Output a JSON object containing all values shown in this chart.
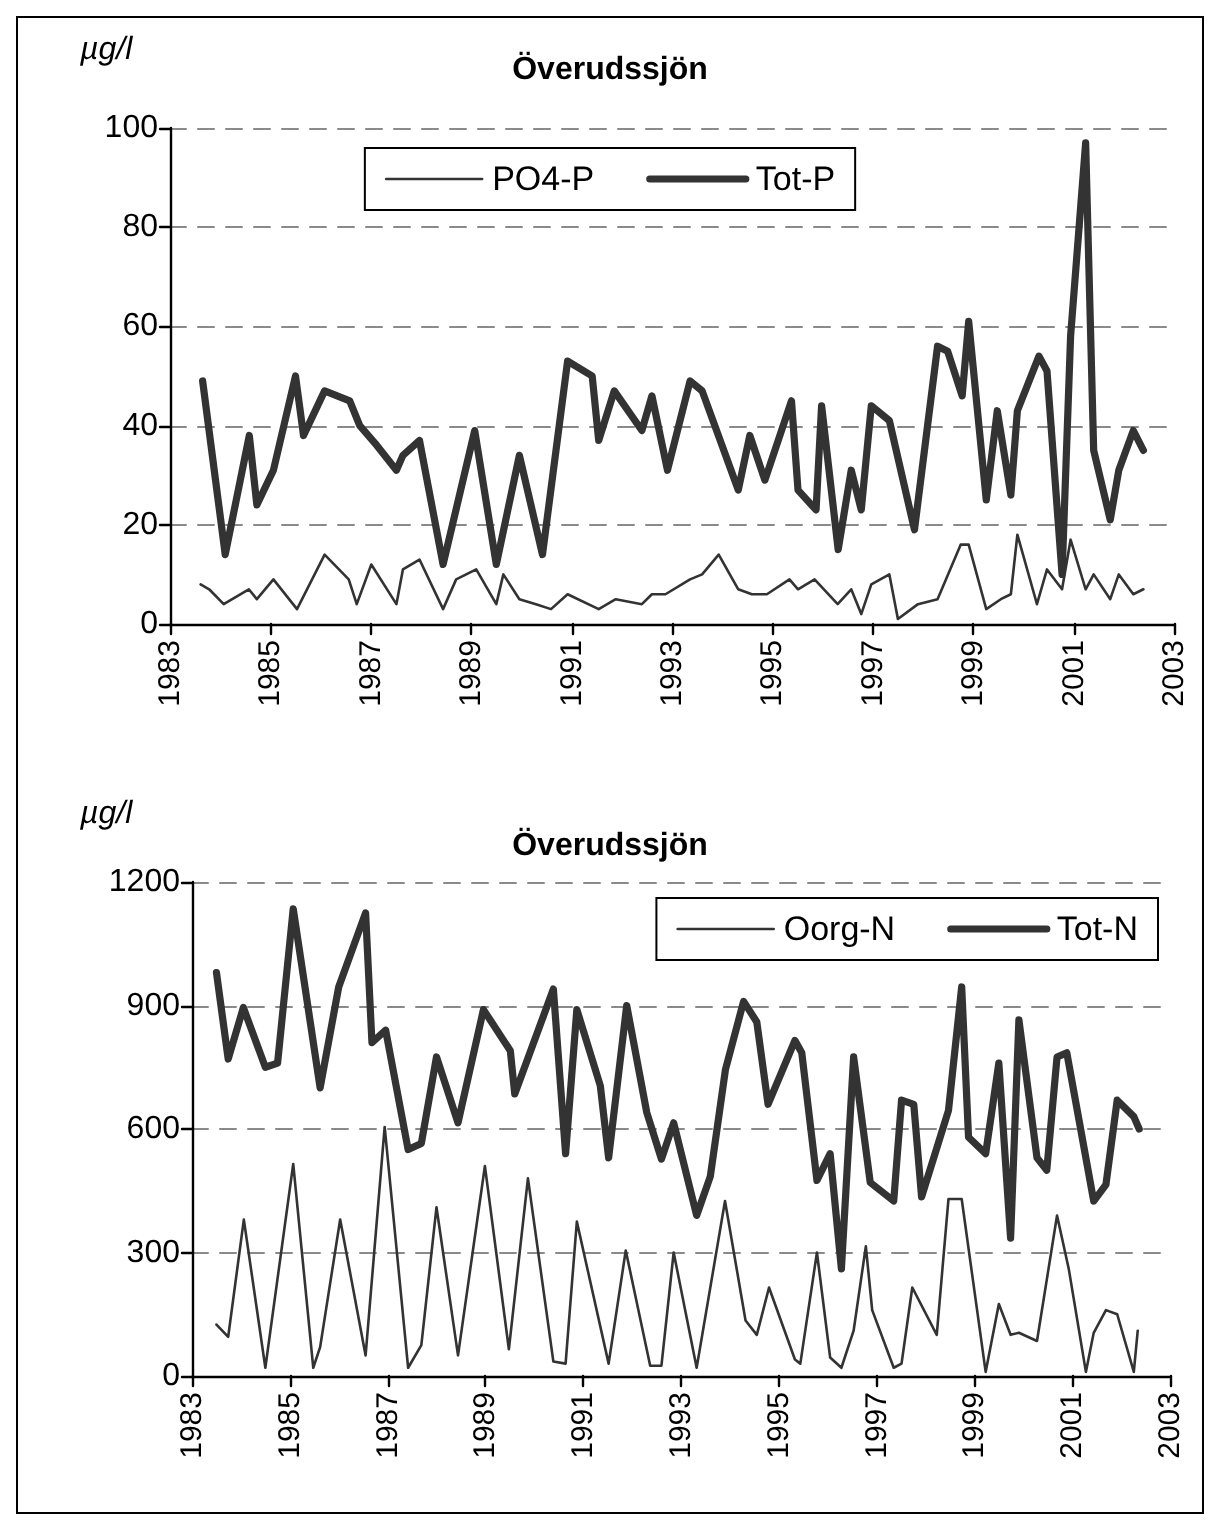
{
  "chart_data": [
    {
      "type": "line",
      "title": "Överudssjön",
      "ylabel": "µg/l",
      "xlim": [
        1983,
        2003
      ],
      "xticks": [
        1983,
        1985,
        1987,
        1989,
        1991,
        1993,
        1995,
        1997,
        1999,
        2001,
        2003
      ],
      "ylim": [
        0,
        100
      ],
      "yticks": [
        0,
        20,
        40,
        60,
        80,
        100
      ],
      "grid": "y",
      "legend": "top",
      "series": [
        {
          "name": "PO4-P",
          "color": "#333333",
          "x": [
            1983.61,
            1983.78,
            1984.07,
            1984.57,
            1984.73,
            1985.06,
            1985.53,
            1986.08,
            1986.56,
            1986.72,
            1987.01,
            1987.51,
            1987.64,
            1987.97,
            1988.44,
            1988.7,
            1989.1,
            1989.5,
            1989.64,
            1989.96,
            1990.29,
            1990.59,
            1990.92,
            1991.54,
            1991.88,
            1992.4,
            1992.6,
            1992.87,
            1993.36,
            1993.6,
            1993.93,
            1994.32,
            1994.59,
            1994.89,
            1995.34,
            1995.51,
            1995.84,
            1996.3,
            1996.57,
            1996.77,
            1996.97,
            1997.33,
            1997.5,
            1997.9,
            1998.29,
            1998.75,
            1998.91,
            1999.26,
            1999.55,
            1999.75,
            1999.88,
            2000.27,
            2000.47,
            2000.77,
            2000.94,
            2001.24,
            2001.4,
            2001.73,
            2001.9,
            2002.19,
            2002.39
          ],
          "values": [
            8,
            7,
            4,
            7,
            5,
            9,
            3,
            14,
            9,
            4,
            12,
            4,
            11,
            13,
            3,
            9,
            11,
            4,
            10,
            5,
            4,
            3,
            6,
            3,
            5,
            4,
            6,
            6,
            9,
            10,
            14,
            7,
            6,
            6,
            9,
            7,
            9,
            4,
            7,
            2,
            8,
            10,
            1,
            4,
            5,
            16,
            16,
            3,
            5,
            6,
            18,
            4,
            11,
            7,
            17,
            7,
            10,
            5,
            10,
            6,
            7
          ]
        },
        {
          "name": "Tot-P",
          "color": "#333333",
          "x": [
            1983.65,
            1984.1,
            1984.58,
            1984.73,
            1985.06,
            1985.5,
            1985.66,
            1986.08,
            1986.58,
            1986.78,
            1987.12,
            1987.51,
            1987.64,
            1987.97,
            1988.44,
            1989.07,
            1989.5,
            1989.96,
            1990.42,
            1990.92,
            1991.41,
            1991.54,
            1991.85,
            1992.4,
            1992.6,
            1992.91,
            1993.36,
            1993.6,
            1994.32,
            1994.55,
            1994.85,
            1995.38,
            1995.51,
            1995.87,
            1995.98,
            1996.31,
            1996.57,
            1996.77,
            1996.97,
            1997.33,
            1997.83,
            1998.29,
            1998.49,
            1998.78,
            1998.91,
            1999.26,
            1999.48,
            1999.75,
            1999.88,
            2000.31,
            2000.47,
            2000.77,
            2000.94,
            2001.24,
            2001.4,
            2001.73,
            2001.9,
            2002.19,
            2002.39
          ],
          "values": [
            49,
            14,
            38,
            24,
            31,
            50,
            38,
            47,
            45,
            40,
            36,
            31,
            34,
            37,
            12,
            39,
            12,
            34,
            14,
            53,
            50,
            37,
            47,
            39,
            46,
            31,
            49,
            47,
            27,
            38,
            29,
            45,
            27,
            23,
            44,
            15,
            31,
            23,
            44,
            41,
            19,
            56,
            55,
            46,
            61,
            25,
            43,
            26,
            43,
            54,
            51,
            10,
            58,
            97,
            35,
            21,
            31,
            39,
            35
          ]
        }
      ]
    },
    {
      "type": "line",
      "title": "Överudssjön",
      "ylabel": "µg/l",
      "xlim": [
        1983,
        2003
      ],
      "xticks": [
        1983,
        1985,
        1987,
        1989,
        1991,
        1993,
        1995,
        1997,
        1999,
        2001,
        2003
      ],
      "ylim": [
        0,
        1200
      ],
      "yticks": [
        0,
        300,
        600,
        900,
        1200
      ],
      "grid": "y",
      "legend": "top right",
      "series": [
        {
          "name": "Oorg-N",
          "color": "#333333",
          "x": [
            1983.5,
            1983.74,
            1984.06,
            1984.5,
            1985.07,
            1985.48,
            1985.62,
            1986.03,
            1986.55,
            1986.94,
            1987.42,
            1987.69,
            1988,
            1988.44,
            1988.99,
            1989.48,
            1989.87,
            1990.39,
            1990.64,
            1990.87,
            1991.52,
            1991.87,
            1992.37,
            1992.6,
            1992.85,
            1993.32,
            1993.9,
            1994.32,
            1994.55,
            1994.8,
            1995.33,
            1995.44,
            1995.78,
            1996.05,
            1996.28,
            1996.53,
            1996.78,
            1996.91,
            1997.35,
            1997.51,
            1997.73,
            1998.23,
            1998.47,
            1998.74,
            1999.23,
            1999.5,
            1999.74,
            1999.91,
            2000.28,
            2000.69,
            2000.93,
            2001.28,
            2001.44,
            2001.69,
            2001.92,
            2002.26,
            2002.34
          ],
          "values": [
            125,
            95,
            380,
            20,
            515,
            20,
            70,
            380,
            50,
            605,
            20,
            75,
            410,
            50,
            510,
            65,
            480,
            35,
            30,
            375,
            30,
            305,
            25,
            25,
            300,
            20,
            425,
            135,
            100,
            215,
            40,
            30,
            300,
            45,
            20,
            110,
            315,
            160,
            20,
            30,
            215,
            100,
            430,
            430,
            10,
            175,
            100,
            105,
            85,
            390,
            260,
            10,
            105,
            160,
            150,
            10,
            110
          ]
        },
        {
          "name": "Tot-N",
          "color": "#333333",
          "x": [
            1983.5,
            1983.74,
            1984.05,
            1984.5,
            1984.75,
            1985.07,
            1985.62,
            1986,
            1986.55,
            1986.68,
            1986.96,
            1987.42,
            1987.69,
            1988,
            1988.44,
            1988.96,
            1989.51,
            1989.6,
            1990.39,
            1990.64,
            1990.87,
            1991.35,
            1991.52,
            1991.89,
            1992.3,
            1992.6,
            1992.85,
            1993.32,
            1993.6,
            1993.91,
            1994.28,
            1994.55,
            1994.78,
            1995.33,
            1995.47,
            1995.78,
            1996.05,
            1996.28,
            1996.53,
            1996.87,
            1997.35,
            1997.51,
            1997.76,
            1997.92,
            1998.47,
            1998.74,
            1998.88,
            1999.23,
            1999.5,
            1999.74,
            1999.91,
            2000.28,
            2000.48,
            2000.69,
            2000.89,
            2001.44,
            2001.69,
            2001.92,
            2002.26,
            2002.37
          ],
          "values": [
            980,
            770,
            895,
            750,
            760,
            1135,
            700,
            945,
            1125,
            810,
            840,
            550,
            565,
            775,
            615,
            890,
            790,
            685,
            940,
            540,
            890,
            705,
            530,
            900,
            640,
            527,
            615,
            390,
            485,
            745,
            910,
            860,
            660,
            815,
            785,
            475,
            540,
            260,
            775,
            470,
            425,
            670,
            660,
            435,
            645,
            945,
            580,
            540,
            760,
            335,
            865,
            530,
            500,
            775,
            785,
            425,
            465,
            670,
            630,
            600
          ]
        }
      ]
    }
  ]
}
